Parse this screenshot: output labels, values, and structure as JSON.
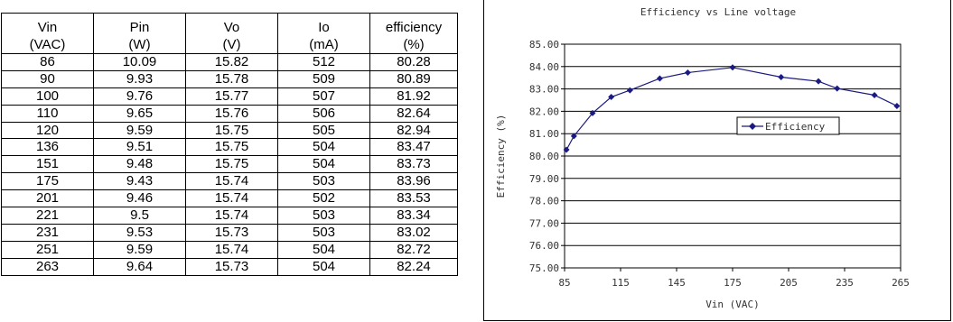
{
  "table": {
    "headers": [
      {
        "name": "Vin",
        "unit": "(VAC)"
      },
      {
        "name": "Pin",
        "unit": "(W)"
      },
      {
        "name": "Vo",
        "unit": "(V)"
      },
      {
        "name": "Io",
        "unit": "(mA)"
      },
      {
        "name": "efficiency",
        "unit": "(%)"
      }
    ],
    "rows": [
      [
        "86",
        "10.09",
        "15.82",
        "512",
        "80.28"
      ],
      [
        "90",
        "9.93",
        "15.78",
        "509",
        "80.89"
      ],
      [
        "100",
        "9.76",
        "15.77",
        "507",
        "81.92"
      ],
      [
        "110",
        "9.65",
        "15.76",
        "506",
        "82.64"
      ],
      [
        "120",
        "9.59",
        "15.75",
        "505",
        "82.94"
      ],
      [
        "136",
        "9.51",
        "15.75",
        "504",
        "83.47"
      ],
      [
        "151",
        "9.48",
        "15.75",
        "504",
        "83.73"
      ],
      [
        "175",
        "9.43",
        "15.74",
        "503",
        "83.96"
      ],
      [
        "201",
        "9.46",
        "15.74",
        "502",
        "83.53"
      ],
      [
        "221",
        "9.5",
        "15.74",
        "503",
        "83.34"
      ],
      [
        "231",
        "9.53",
        "15.73",
        "503",
        "83.02"
      ],
      [
        "251",
        "9.59",
        "15.74",
        "504",
        "82.72"
      ],
      [
        "263",
        "9.64",
        "15.73",
        "504",
        "82.24"
      ]
    ]
  },
  "chart_data": {
    "type": "line",
    "title": "Efficiency vs Line voltage",
    "xlabel": "Vin (VAC)",
    "ylabel": "Efficiency (%)",
    "xlim": [
      85,
      265
    ],
    "ylim": [
      75,
      85
    ],
    "xticks": [
      85,
      115,
      145,
      175,
      205,
      235,
      265
    ],
    "yticks": [
      "75.00",
      "76.00",
      "77.00",
      "78.00",
      "79.00",
      "80.00",
      "81.00",
      "82.00",
      "83.00",
      "84.00",
      "85.00"
    ],
    "grid": "horizontal",
    "legend_position": "right",
    "series": [
      {
        "name": "Efficiency",
        "color": "#1a1a80",
        "marker": "diamond",
        "x": [
          86,
          90,
          100,
          110,
          120,
          136,
          151,
          175,
          201,
          221,
          231,
          251,
          263
        ],
        "y": [
          80.28,
          80.89,
          81.92,
          82.64,
          82.94,
          83.47,
          83.73,
          83.96,
          83.53,
          83.34,
          83.02,
          82.72,
          82.24
        ]
      }
    ]
  }
}
